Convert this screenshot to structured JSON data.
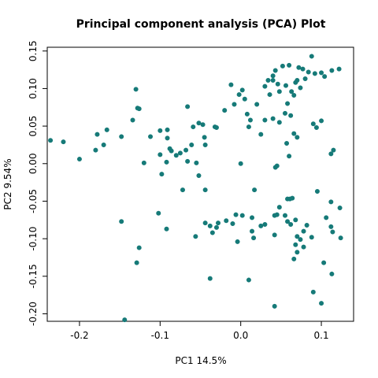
{
  "chart_data": {
    "type": "scatter",
    "title": "Principal component analysis (PCA) Plot",
    "xlabel": "PC1 14.5%",
    "ylabel": "PC2 9.54%",
    "xlim": [
      -0.24,
      0.14
    ],
    "ylim": [
      -0.21,
      0.155
    ],
    "x_ticks": [
      -0.2,
      -0.1,
      0.0,
      0.1
    ],
    "x_tick_labels": [
      "-0.2",
      "-0.1",
      "0.0",
      "0.1"
    ],
    "y_ticks": [
      -0.2,
      -0.15,
      -0.1,
      -0.05,
      0.0,
      0.05,
      0.1,
      0.15
    ],
    "y_tick_labels": [
      "-0.20",
      "-0.15",
      "-0.10",
      "-0.05",
      "0.00",
      "0.05",
      "0.10",
      "0.15"
    ],
    "marker_color": "#167a78",
    "points": [
      {
        "x": -0.236,
        "y": 0.031
      },
      {
        "x": -0.22,
        "y": 0.029
      },
      {
        "x": -0.2,
        "y": 0.006
      },
      {
        "x": -0.178,
        "y": 0.039
      },
      {
        "x": -0.166,
        "y": 0.045
      },
      {
        "x": -0.18,
        "y": 0.018
      },
      {
        "x": -0.17,
        "y": 0.025
      },
      {
        "x": -0.148,
        "y": 0.036
      },
      {
        "x": -0.134,
        "y": 0.058
      },
      {
        "x": -0.13,
        "y": 0.099
      },
      {
        "x": -0.128,
        "y": 0.074
      },
      {
        "x": -0.126,
        "y": 0.073
      },
      {
        "x": -0.112,
        "y": 0.036
      },
      {
        "x": -0.1,
        "y": 0.044
      },
      {
        "x": -0.091,
        "y": 0.045
      },
      {
        "x": -0.091,
        "y": 0.034
      },
      {
        "x": -0.088,
        "y": 0.02
      },
      {
        "x": -0.1,
        "y": 0.012
      },
      {
        "x": -0.12,
        "y": 0.001
      },
      {
        "x": -0.098,
        "y": -0.014
      },
      {
        "x": -0.08,
        "y": 0.011
      },
      {
        "x": -0.075,
        "y": 0.014
      },
      {
        "x": -0.068,
        "y": 0.018
      },
      {
        "x": -0.066,
        "y": 0.003
      },
      {
        "x": -0.061,
        "y": 0.025
      },
      {
        "x": -0.092,
        "y": 0.002
      },
      {
        "x": -0.086,
        "y": 0.017
      },
      {
        "x": -0.066,
        "y": 0.076
      },
      {
        "x": -0.059,
        "y": 0.049
      },
      {
        "x": -0.052,
        "y": 0.054
      },
      {
        "x": -0.047,
        "y": 0.052
      },
      {
        "x": -0.045,
        "y": 0.035
      },
      {
        "x": -0.044,
        "y": 0.025
      },
      {
        "x": -0.055,
        "y": 0.001
      },
      {
        "x": -0.052,
        "y": -0.016
      },
      {
        "x": -0.072,
        "y": -0.035
      },
      {
        "x": -0.044,
        "y": -0.035
      },
      {
        "x": -0.032,
        "y": 0.049
      },
      {
        "x": -0.03,
        "y": 0.048
      },
      {
        "x": -0.02,
        "y": 0.071
      },
      {
        "x": -0.012,
        "y": 0.105
      },
      {
        "x": -0.008,
        "y": 0.079
      },
      {
        "x": -0.002,
        "y": 0.092
      },
      {
        "x": 0.002,
        "y": 0.098
      },
      {
        "x": 0.005,
        "y": 0.086
      },
      {
        "x": 0.008,
        "y": 0.066
      },
      {
        "x": 0.01,
        "y": 0.049
      },
      {
        "x": 0.012,
        "y": 0.058
      },
      {
        "x": 0.02,
        "y": 0.079
      },
      {
        "x": 0.025,
        "y": 0.039
      },
      {
        "x": 0.03,
        "y": 0.103
      },
      {
        "x": 0.034,
        "y": 0.111
      },
      {
        "x": 0.036,
        "y": 0.092
      },
      {
        "x": 0.04,
        "y": 0.117
      },
      {
        "x": 0.04,
        "y": 0.111
      },
      {
        "x": 0.043,
        "y": 0.124
      },
      {
        "x": 0.046,
        "y": 0.106
      },
      {
        "x": 0.048,
        "y": 0.096
      },
      {
        "x": 0.052,
        "y": 0.13
      },
      {
        "x": 0.056,
        "y": 0.104
      },
      {
        "x": 0.058,
        "y": 0.08
      },
      {
        "x": 0.06,
        "y": 0.131
      },
      {
        "x": 0.063,
        "y": 0.096
      },
      {
        "x": 0.066,
        "y": 0.091
      },
      {
        "x": 0.068,
        "y": 0.108
      },
      {
        "x": 0.07,
        "y": 0.111
      },
      {
        "x": 0.072,
        "y": 0.128
      },
      {
        "x": 0.074,
        "y": 0.101
      },
      {
        "x": 0.077,
        "y": 0.126
      },
      {
        "x": 0.08,
        "y": 0.113
      },
      {
        "x": 0.084,
        "y": 0.122
      },
      {
        "x": 0.088,
        "y": 0.143
      },
      {
        "x": 0.092,
        "y": 0.12
      },
      {
        "x": 0.1,
        "y": 0.121
      },
      {
        "x": 0.104,
        "y": 0.116
      },
      {
        "x": 0.113,
        "y": 0.124
      },
      {
        "x": 0.122,
        "y": 0.126
      },
      {
        "x": 0.03,
        "y": 0.058
      },
      {
        "x": 0.04,
        "y": 0.06
      },
      {
        "x": 0.048,
        "y": 0.055
      },
      {
        "x": 0.055,
        "y": 0.067
      },
      {
        "x": 0.062,
        "y": 0.064
      },
      {
        "x": 0.066,
        "y": 0.04
      },
      {
        "x": 0.07,
        "y": 0.035
      },
      {
        "x": 0.09,
        "y": 0.053
      },
      {
        "x": 0.094,
        "y": 0.048
      },
      {
        "x": 0.1,
        "y": 0.057
      },
      {
        "x": 0.112,
        "y": 0.013
      },
      {
        "x": 0.115,
        "y": 0.018
      },
      {
        "x": 0.057,
        "y": 0.027
      },
      {
        "x": 0.06,
        "y": 0.01
      },
      {
        "x": 0.045,
        "y": -0.003
      },
      {
        "x": 0.043,
        "y": -0.005
      },
      {
        "x": 0.0,
        "y": 0.0
      },
      {
        "x": 0.017,
        "y": -0.035
      },
      {
        "x": 0.058,
        "y": -0.047
      },
      {
        "x": 0.061,
        "y": -0.047
      },
      {
        "x": 0.064,
        "y": -0.046
      },
      {
        "x": 0.095,
        "y": -0.037
      },
      {
        "x": 0.112,
        "y": -0.051
      },
      {
        "x": 0.123,
        "y": -0.059
      },
      {
        "x": -0.006,
        "y": -0.068
      },
      {
        "x": 0.002,
        "y": -0.069
      },
      {
        "x": 0.014,
        "y": -0.072
      },
      {
        "x": -0.018,
        "y": -0.076
      },
      {
        "x": -0.028,
        "y": -0.079
      },
      {
        "x": -0.038,
        "y": -0.083
      },
      {
        "x": -0.044,
        "y": -0.079
      },
      {
        "x": -0.035,
        "y": -0.092
      },
      {
        "x": -0.03,
        "y": -0.085
      },
      {
        "x": -0.01,
        "y": -0.08
      },
      {
        "x": -0.004,
        "y": -0.104
      },
      {
        "x": 0.014,
        "y": -0.09
      },
      {
        "x": 0.016,
        "y": -0.099
      },
      {
        "x": 0.025,
        "y": -0.083
      },
      {
        "x": 0.03,
        "y": -0.081
      },
      {
        "x": 0.042,
        "y": -0.069
      },
      {
        "x": 0.045,
        "y": -0.068
      },
      {
        "x": 0.048,
        "y": -0.058
      },
      {
        "x": 0.055,
        "y": -0.069
      },
      {
        "x": 0.058,
        "y": -0.077
      },
      {
        "x": 0.062,
        "y": -0.081
      },
      {
        "x": 0.068,
        "y": -0.075
      },
      {
        "x": 0.07,
        "y": -0.097
      },
      {
        "x": 0.074,
        "y": -0.101
      },
      {
        "x": 0.068,
        "y": -0.108
      },
      {
        "x": 0.078,
        "y": -0.09
      },
      {
        "x": 0.082,
        "y": -0.082
      },
      {
        "x": 0.088,
        "y": -0.098
      },
      {
        "x": 0.106,
        "y": -0.072
      },
      {
        "x": 0.112,
        "y": -0.084
      },
      {
        "x": 0.114,
        "y": -0.091
      },
      {
        "x": 0.124,
        "y": -0.099
      },
      {
        "x": 0.042,
        "y": -0.095
      },
      {
        "x": 0.07,
        "y": -0.118
      },
      {
        "x": 0.078,
        "y": -0.111
      },
      {
        "x": 0.066,
        "y": -0.127
      },
      {
        "x": 0.103,
        "y": -0.132
      },
      {
        "x": 0.113,
        "y": -0.147
      },
      {
        "x": 0.09,
        "y": -0.171
      },
      {
        "x": 0.1,
        "y": -0.186
      },
      {
        "x": -0.148,
        "y": -0.077
      },
      {
        "x": -0.126,
        "y": -0.112
      },
      {
        "x": -0.129,
        "y": -0.132
      },
      {
        "x": -0.102,
        "y": -0.066
      },
      {
        "x": -0.092,
        "y": -0.087
      },
      {
        "x": -0.056,
        "y": -0.097
      },
      {
        "x": -0.038,
        "y": -0.153
      },
      {
        "x": 0.01,
        "y": -0.155
      },
      {
        "x": 0.042,
        "y": -0.19
      },
      {
        "x": -0.144,
        "y": -0.208
      }
    ]
  }
}
